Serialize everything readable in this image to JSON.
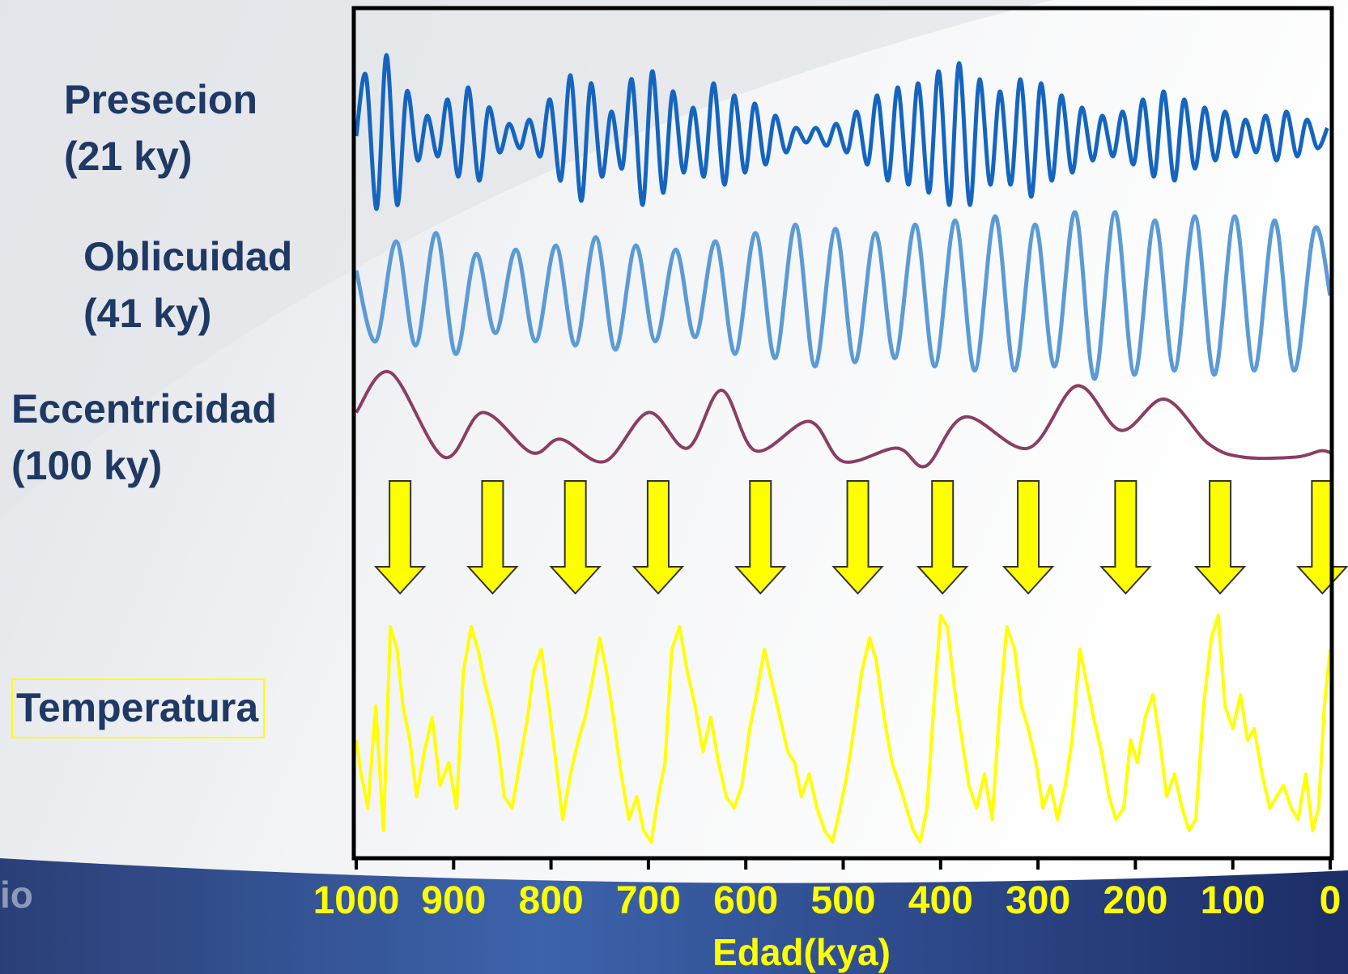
{
  "labels": {
    "precession_name": "Presecion",
    "precession_period": "(21 ky)",
    "obliquity_name": "Oblicuidad",
    "obliquity_period": "(41 ky)",
    "eccentricity_name": "Eccentricidad",
    "eccentricity_period": "(100 ky)",
    "temperature_name": "Temperatura",
    "corner_fragment": "io"
  },
  "colors": {
    "precession": "#1565c0",
    "obliquity": "#5b9bd5",
    "eccentricity": "#8b3d62",
    "temperature": "#ffff00",
    "arrows": "#ffff00",
    "labels": "#1f3864",
    "frame": "#000000"
  },
  "chart_data": {
    "type": "line",
    "xlabel": "Edad(kya)",
    "xlim": [
      1000,
      0
    ],
    "x_reversed": true,
    "xticks": [
      1000,
      900,
      800,
      700,
      600,
      500,
      400,
      300,
      200,
      100,
      0
    ],
    "x_tick_labels": [
      "1000",
      "900",
      "800",
      "700",
      "600",
      "500",
      "400",
      "300",
      "200",
      "100",
      "0"
    ],
    "grid": false,
    "legend": "left-side labels",
    "series": [
      {
        "name": "Presecion (21 ky)",
        "period_ky": 21,
        "kya": [
          1000,
          990,
          979,
          969,
          958,
          948,
          937,
          927,
          916,
          906,
          895,
          885,
          874,
          864,
          853,
          843,
          832,
          822,
          811,
          801,
          790,
          780,
          769,
          759,
          748,
          738,
          727,
          717,
          706,
          696,
          685,
          675,
          664,
          654,
          643,
          633,
          622,
          612,
          601,
          591,
          580,
          570,
          559,
          549,
          538,
          528,
          517,
          507,
          496,
          486,
          475,
          465,
          454,
          444,
          433,
          423,
          412,
          402,
          391,
          381,
          370,
          360,
          349,
          339,
          328,
          318,
          307,
          297,
          286,
          276,
          265,
          255,
          244,
          234,
          223,
          213,
          202,
          192,
          181,
          171,
          160,
          150,
          139,
          129,
          118,
          108,
          97,
          87,
          76,
          66,
          55,
          45,
          34,
          24,
          13,
          3
        ],
        "amplitude": [
          0,
          0.75,
          -0.9,
          1.0,
          -0.85,
          0.55,
          -0.3,
          0.25,
          -0.25,
          0.45,
          -0.5,
          0.6,
          -0.55,
          0.35,
          -0.2,
          0.15,
          -0.15,
          0.2,
          -0.25,
          0.45,
          -0.55,
          0.75,
          -0.8,
          0.65,
          -0.5,
          0.3,
          -0.4,
          0.7,
          -0.85,
          0.8,
          -0.7,
          0.55,
          -0.45,
          0.35,
          -0.5,
          0.65,
          -0.6,
          0.5,
          -0.45,
          0.4,
          -0.35,
          0.25,
          -0.2,
          0.1,
          -0.08,
          0.1,
          -0.12,
          0.15,
          -0.2,
          0.3,
          -0.35,
          0.5,
          -0.55,
          0.6,
          -0.6,
          0.65,
          -0.7,
          0.8,
          -0.85,
          0.9,
          -0.85,
          0.7,
          -0.6,
          0.55,
          -0.6,
          0.7,
          -0.75,
          0.65,
          -0.55,
          0.5,
          -0.45,
          0.35,
          -0.3,
          0.25,
          -0.25,
          0.3,
          -0.35,
          0.45,
          -0.5,
          0.55,
          -0.55,
          0.45,
          -0.4,
          0.35,
          -0.3,
          0.3,
          -0.25,
          0.2,
          -0.2,
          0.25,
          -0.3,
          0.3,
          -0.25,
          0.2,
          -0.15,
          0.1
        ]
      },
      {
        "name": "Oblicuidad (41 ky)",
        "period_ky": 41,
        "kya": [
          1000,
          980,
          959,
          939,
          918,
          898,
          877,
          857,
          836,
          816,
          795,
          775,
          754,
          734,
          713,
          693,
          672,
          652,
          631,
          611,
          590,
          570,
          549,
          529,
          508,
          488,
          467,
          447,
          426,
          406,
          385,
          365,
          344,
          324,
          303,
          283,
          262,
          242,
          221,
          201,
          180,
          160,
          139,
          119,
          98,
          78,
          57,
          37,
          16,
          0
        ],
        "amplitude": [
          0.3,
          -0.55,
          0.65,
          -0.6,
          0.75,
          -0.7,
          0.5,
          -0.45,
          0.55,
          -0.55,
          0.6,
          -0.6,
          0.7,
          -0.65,
          0.6,
          -0.55,
          0.55,
          -0.5,
          0.65,
          -0.7,
          0.75,
          -0.75,
          0.85,
          -0.85,
          0.8,
          -0.8,
          0.75,
          -0.75,
          0.85,
          -0.85,
          0.9,
          -0.9,
          0.95,
          -0.9,
          0.85,
          -0.85,
          1.0,
          -1.0,
          1.0,
          -0.95,
          0.9,
          -0.9,
          0.95,
          -0.95,
          0.95,
          -0.9,
          0.9,
          -0.9,
          0.8,
          0.0
        ]
      },
      {
        "name": "Eccentricidad (100 ky)",
        "period_ky": 100,
        "kya": [
          1000,
          965,
          910,
          870,
          820,
          790,
          745,
          700,
          660,
          625,
          590,
          535,
          500,
          445,
          415,
          375,
          310,
          260,
          215,
          170,
          125,
          90,
          35,
          10,
          0
        ],
        "value": [
          0.55,
          1.0,
          0.05,
          0.55,
          0.1,
          0.25,
          0.0,
          0.55,
          0.15,
          0.8,
          0.12,
          0.45,
          0.0,
          0.15,
          -0.05,
          0.5,
          0.15,
          0.85,
          0.35,
          0.7,
          0.2,
          0.05,
          0.05,
          0.12,
          0.1
        ]
      },
      {
        "name": "Temperatura",
        "kya": [
          1000,
          995,
          988,
          980,
          972,
          965,
          958,
          952,
          945,
          938,
          930,
          922,
          914,
          905,
          897,
          890,
          882,
          875,
          868,
          862,
          855,
          848,
          840,
          832,
          824,
          818,
          810,
          802,
          795,
          788,
          780,
          772,
          765,
          758,
          750,
          743,
          736,
          728,
          720,
          712,
          705,
          697,
          690,
          683,
          676,
          668,
          660,
          652,
          644,
          636,
          628,
          620,
          612,
          604,
          596,
          589,
          581,
          573,
          565,
          557,
          550,
          543,
          535,
          527,
          519,
          511,
          503,
          496,
          489,
          481,
          473,
          466,
          458,
          450,
          442,
          435,
          428,
          421,
          414,
          407,
          400,
          393,
          385,
          378,
          371,
          363,
          355,
          347,
          340,
          332,
          324,
          317,
          310,
          302,
          295,
          287,
          280,
          272,
          265,
          257,
          250,
          243,
          235,
          227,
          220,
          212,
          205,
          198,
          190,
          182,
          175,
          168,
          160,
          152,
          145,
          138,
          130,
          122,
          115,
          108,
          100,
          92,
          85,
          78,
          70,
          62,
          55,
          48,
          40,
          33,
          25,
          18,
          12,
          6,
          0
        ],
        "relative": [
          0.45,
          0.3,
          0.15,
          0.6,
          0.05,
          0.95,
          0.85,
          0.6,
          0.45,
          0.2,
          0.4,
          0.55,
          0.25,
          0.35,
          0.15,
          0.75,
          0.95,
          0.85,
          0.7,
          0.6,
          0.45,
          0.2,
          0.15,
          0.35,
          0.55,
          0.75,
          0.85,
          0.6,
          0.35,
          0.1,
          0.3,
          0.45,
          0.55,
          0.7,
          0.9,
          0.75,
          0.55,
          0.3,
          0.1,
          0.2,
          0.05,
          0.0,
          0.2,
          0.35,
          0.85,
          0.95,
          0.75,
          0.6,
          0.4,
          0.55,
          0.35,
          0.2,
          0.15,
          0.25,
          0.5,
          0.65,
          0.85,
          0.7,
          0.55,
          0.4,
          0.35,
          0.2,
          0.3,
          0.15,
          0.05,
          0.0,
          0.15,
          0.3,
          0.5,
          0.75,
          0.9,
          0.8,
          0.55,
          0.35,
          0.25,
          0.15,
          0.05,
          0.0,
          0.15,
          0.6,
          1.0,
          0.95,
          0.65,
          0.45,
          0.25,
          0.15,
          0.3,
          0.1,
          0.55,
          0.95,
          0.85,
          0.6,
          0.5,
          0.35,
          0.15,
          0.25,
          0.1,
          0.25,
          0.45,
          0.85,
          0.7,
          0.55,
          0.4,
          0.2,
          0.1,
          0.15,
          0.45,
          0.35,
          0.55,
          0.65,
          0.45,
          0.2,
          0.3,
          0.15,
          0.05,
          0.1,
          0.6,
          0.9,
          1.0,
          0.6,
          0.5,
          0.65,
          0.45,
          0.5,
          0.3,
          0.15,
          0.2,
          0.25,
          0.15,
          0.1,
          0.3,
          0.05,
          0.15,
          0.6,
          0.85
        ]
      }
    ],
    "arrow_positions_kya": [
      955,
      860,
      775,
      690,
      585,
      485,
      398,
      310,
      210,
      113,
      8
    ]
  }
}
